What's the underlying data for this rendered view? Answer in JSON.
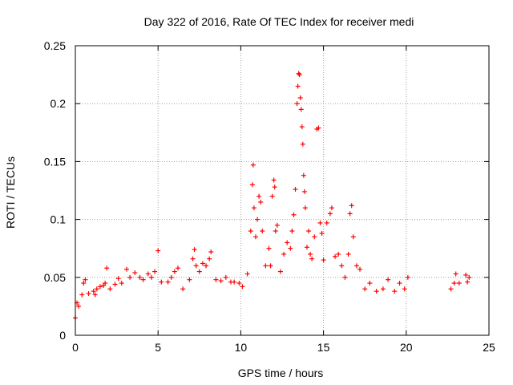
{
  "chart_data": {
    "type": "scatter",
    "title": "Day 322 of 2016, Rate Of TEC Index for receiver medi",
    "xlabel": "GPS time / hours",
    "ylabel": "ROTI / TECUs",
    "xlim": [
      0,
      25
    ],
    "ylim": [
      0,
      0.25
    ],
    "x_ticks": [
      0,
      5,
      10,
      15,
      20,
      25
    ],
    "y_ticks": [
      0,
      0.05,
      0.1,
      0.15,
      0.2,
      0.25
    ],
    "x_tick_labels": [
      "0",
      "5",
      "10",
      "15",
      "20",
      "25"
    ],
    "y_tick_labels": [
      "0",
      "0.05",
      "0.1",
      "0.15",
      "0.2",
      "0.25"
    ],
    "grid": true,
    "legend": "none",
    "marker": "+",
    "series_color": "#ff0000",
    "data_gap_hours": [
      20.3,
      22.6
    ],
    "series": [
      {
        "points": [
          [
            0.0,
            0.015
          ],
          [
            0.1,
            0.028
          ],
          [
            0.2,
            0.025
          ],
          [
            0.4,
            0.035
          ],
          [
            0.5,
            0.045
          ],
          [
            0.6,
            0.048
          ],
          [
            0.8,
            0.036
          ],
          [
            1.1,
            0.038
          ],
          [
            1.2,
            0.035
          ],
          [
            1.3,
            0.04
          ],
          [
            1.5,
            0.042
          ],
          [
            1.7,
            0.043
          ],
          [
            1.8,
            0.045
          ],
          [
            1.9,
            0.058
          ],
          [
            2.1,
            0.04
          ],
          [
            2.4,
            0.044
          ],
          [
            2.6,
            0.049
          ],
          [
            2.8,
            0.045
          ],
          [
            3.1,
            0.057
          ],
          [
            3.3,
            0.05
          ],
          [
            3.6,
            0.054
          ],
          [
            3.9,
            0.05
          ],
          [
            4.1,
            0.048
          ],
          [
            4.4,
            0.053
          ],
          [
            4.6,
            0.05
          ],
          [
            4.8,
            0.055
          ],
          [
            5.0,
            0.073
          ],
          [
            5.2,
            0.046
          ],
          [
            5.6,
            0.046
          ],
          [
            5.8,
            0.05
          ],
          [
            6.0,
            0.055
          ],
          [
            6.2,
            0.058
          ],
          [
            6.5,
            0.04
          ],
          [
            6.9,
            0.048
          ],
          [
            7.1,
            0.066
          ],
          [
            7.2,
            0.074
          ],
          [
            7.3,
            0.06
          ],
          [
            7.5,
            0.055
          ],
          [
            7.7,
            0.062
          ],
          [
            7.9,
            0.06
          ],
          [
            8.1,
            0.066
          ],
          [
            8.2,
            0.072
          ],
          [
            8.5,
            0.048
          ],
          [
            8.8,
            0.047
          ],
          [
            9.1,
            0.05
          ],
          [
            9.4,
            0.046
          ],
          [
            9.6,
            0.046
          ],
          [
            9.9,
            0.045
          ],
          [
            10.1,
            0.042
          ],
          [
            10.4,
            0.053
          ],
          [
            10.6,
            0.09
          ],
          [
            10.7,
            0.13
          ],
          [
            10.75,
            0.147
          ],
          [
            10.8,
            0.11
          ],
          [
            10.9,
            0.085
          ],
          [
            11.0,
            0.1
          ],
          [
            11.1,
            0.12
          ],
          [
            11.2,
            0.115
          ],
          [
            11.3,
            0.09
          ],
          [
            11.5,
            0.06
          ],
          [
            11.7,
            0.075
          ],
          [
            11.8,
            0.06
          ],
          [
            11.9,
            0.12
          ],
          [
            12.0,
            0.134
          ],
          [
            12.05,
            0.128
          ],
          [
            12.1,
            0.09
          ],
          [
            12.2,
            0.095
          ],
          [
            12.4,
            0.055
          ],
          [
            12.6,
            0.07
          ],
          [
            12.8,
            0.08
          ],
          [
            13.0,
            0.075
          ],
          [
            13.1,
            0.09
          ],
          [
            13.2,
            0.104
          ],
          [
            13.3,
            0.126
          ],
          [
            13.4,
            0.2
          ],
          [
            13.45,
            0.215
          ],
          [
            13.5,
            0.226
          ],
          [
            13.55,
            0.225
          ],
          [
            13.6,
            0.205
          ],
          [
            13.65,
            0.195
          ],
          [
            13.7,
            0.18
          ],
          [
            13.75,
            0.165
          ],
          [
            13.8,
            0.138
          ],
          [
            13.85,
            0.124
          ],
          [
            13.9,
            0.11
          ],
          [
            14.0,
            0.076
          ],
          [
            14.1,
            0.09
          ],
          [
            14.2,
            0.07
          ],
          [
            14.3,
            0.066
          ],
          [
            14.45,
            0.085
          ],
          [
            14.6,
            0.178
          ],
          [
            14.7,
            0.179
          ],
          [
            14.8,
            0.097
          ],
          [
            14.9,
            0.088
          ],
          [
            15.0,
            0.065
          ],
          [
            15.2,
            0.097
          ],
          [
            15.4,
            0.105
          ],
          [
            15.5,
            0.11
          ],
          [
            15.7,
            0.068
          ],
          [
            15.9,
            0.07
          ],
          [
            16.1,
            0.06
          ],
          [
            16.3,
            0.05
          ],
          [
            16.5,
            0.07
          ],
          [
            16.6,
            0.105
          ],
          [
            16.7,
            0.112
          ],
          [
            16.8,
            0.085
          ],
          [
            17.0,
            0.06
          ],
          [
            17.2,
            0.057
          ],
          [
            17.5,
            0.04
          ],
          [
            17.8,
            0.045
          ],
          [
            18.2,
            0.038
          ],
          [
            18.6,
            0.04
          ],
          [
            18.9,
            0.048
          ],
          [
            19.3,
            0.038
          ],
          [
            19.6,
            0.045
          ],
          [
            19.9,
            0.04
          ],
          [
            20.1,
            0.05
          ],
          [
            22.7,
            0.04
          ],
          [
            22.9,
            0.045
          ],
          [
            23.0,
            0.053
          ],
          [
            23.2,
            0.045
          ],
          [
            23.6,
            0.052
          ],
          [
            23.7,
            0.046
          ],
          [
            23.8,
            0.05
          ]
        ]
      }
    ]
  }
}
